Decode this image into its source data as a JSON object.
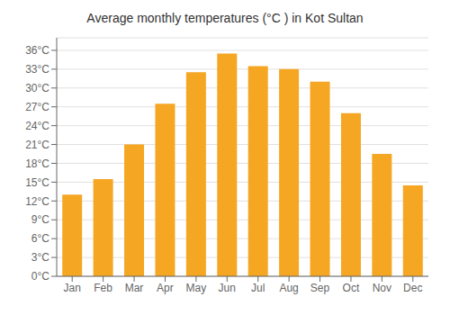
{
  "chart_data": {
    "type": "bar",
    "title": "Average monthly temperatures (°C ) in Kot Sultan",
    "categories": [
      "Jan",
      "Feb",
      "Mar",
      "Apr",
      "May",
      "Jun",
      "Jul",
      "Aug",
      "Sep",
      "Oct",
      "Nov",
      "Dec"
    ],
    "values": [
      13.0,
      15.5,
      21.0,
      27.5,
      32.5,
      35.5,
      33.5,
      33.0,
      31.0,
      26.0,
      19.5,
      14.5
    ],
    "color": "#F5A623",
    "ylim": [
      0,
      38
    ],
    "yticks": [
      {
        "value": 0,
        "label": "0°C"
      },
      {
        "value": 3,
        "label": "3°C"
      },
      {
        "value": 6,
        "label": "6°C"
      },
      {
        "value": 9,
        "label": "9°C"
      },
      {
        "value": 12,
        "label": "12°C"
      },
      {
        "value": 15,
        "label": "15°C"
      },
      {
        "value": 18,
        "label": "18°C"
      },
      {
        "value": 21,
        "label": "21°C"
      },
      {
        "value": 24,
        "label": "24°C"
      },
      {
        "value": 27,
        "label": "27°C"
      },
      {
        "value": 30,
        "label": "30°C"
      },
      {
        "value": 33,
        "label": "33°C"
      },
      {
        "value": 36,
        "label": "36°C"
      }
    ],
    "grid": true
  }
}
